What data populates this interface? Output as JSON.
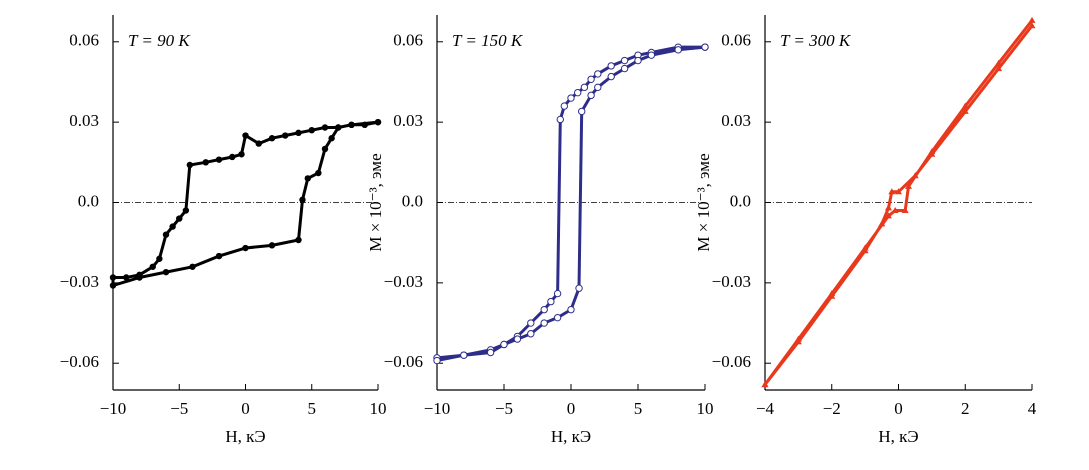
{
  "chart_data": [
    {
      "type": "line",
      "annotation": "T = 90 K",
      "x_label": "H, кЭ",
      "color": "#000000",
      "marker": "filled-circle",
      "x": [
        10,
        9,
        8,
        7,
        6,
        5,
        4,
        3,
        2,
        1,
        0,
        -0.3,
        -1,
        -2,
        -3,
        -4.2,
        -4.5,
        -5,
        -5.5,
        -6,
        -6.5,
        -7,
        -8,
        -9,
        -10,
        -10,
        -8,
        -6,
        -4,
        -2,
        0,
        2,
        4,
        4.3,
        4.7,
        5.5,
        6,
        6.5,
        7,
        8,
        10
      ],
      "values": [
        0.03,
        0.029,
        0.029,
        0.028,
        0.028,
        0.027,
        0.026,
        0.025,
        0.024,
        0.022,
        0.025,
        0.018,
        0.017,
        0.016,
        0.015,
        0.014,
        -0.003,
        -0.006,
        -0.009,
        -0.012,
        -0.021,
        -0.024,
        -0.027,
        -0.028,
        -0.028,
        -0.031,
        -0.028,
        -0.026,
        -0.024,
        -0.02,
        -0.017,
        -0.016,
        -0.014,
        0.001,
        0.009,
        0.011,
        0.02,
        0.024,
        0.028,
        0.029,
        0.03
      ],
      "xlim": [
        -10,
        10
      ],
      "xticks": [
        {
          "value": -10,
          "label": "−10"
        },
        {
          "value": -5,
          "label": "−5"
        },
        0,
        5,
        10
      ],
      "ylim": [
        -0.07,
        0.07
      ],
      "yticks": [
        {
          "value": -0.06,
          "label": "−0.06"
        },
        {
          "value": -0.03,
          "label": "−0.03"
        },
        {
          "value": 0,
          "label": "0.0"
        },
        0.03,
        0.06
      ],
      "zero_line": true
    },
    {
      "type": "line",
      "annotation": "T = 150 K",
      "x_label": "H, кЭ",
      "y_label": "M × 10⁻³, эме",
      "color": "#2e2e8a",
      "marker": "hollow-circle",
      "x": [
        10,
        8,
        6,
        5,
        4,
        3,
        2,
        1.5,
        1,
        0.5,
        0,
        -0.5,
        -0.8,
        -1,
        -1.5,
        -2,
        -3,
        -4,
        -5,
        -6,
        -8,
        -10,
        -10,
        -8,
        -6,
        -5,
        -4,
        -3,
        -2,
        -1,
        0,
        0.6,
        0.8,
        1.5,
        2,
        3,
        4,
        5,
        6,
        8,
        10
      ],
      "values": [
        0.058,
        0.058,
        0.056,
        0.055,
        0.053,
        0.051,
        0.048,
        0.046,
        0.043,
        0.041,
        0.039,
        0.036,
        0.031,
        -0.034,
        -0.037,
        -0.04,
        -0.045,
        -0.05,
        -0.053,
        -0.055,
        -0.057,
        -0.058,
        -0.059,
        -0.057,
        -0.056,
        -0.053,
        -0.051,
        -0.049,
        -0.045,
        -0.043,
        -0.04,
        -0.032,
        0.034,
        0.04,
        0.043,
        0.047,
        0.05,
        0.053,
        0.055,
        0.057,
        0.058
      ],
      "xlim": [
        -10,
        10
      ],
      "xticks": [
        {
          "value": -10,
          "label": "−10"
        },
        {
          "value": -5,
          "label": "−5"
        },
        0,
        5,
        10
      ],
      "ylim": [
        -0.07,
        0.07
      ],
      "yticks": [
        {
          "value": -0.06,
          "label": "−0.06"
        },
        {
          "value": -0.03,
          "label": "−0.03"
        },
        {
          "value": 0,
          "label": "0.0"
        },
        0.03,
        0.06
      ],
      "zero_line": true
    },
    {
      "type": "line",
      "annotation": "T = 300 K",
      "x_label": "H, кЭ",
      "y_label": "M × 10⁻³, эме",
      "color": "#e8391d",
      "marker": "triangle",
      "x": [
        4,
        3,
        2,
        1,
        0.5,
        0,
        -0.2,
        -0.3,
        -0.5,
        -1,
        -2,
        -3,
        -4,
        -4,
        -3,
        -2,
        -1,
        -0.3,
        -0.1,
        0.2,
        0.3,
        1,
        2,
        3,
        4
      ],
      "values": [
        0.066,
        0.05,
        0.034,
        0.018,
        0.01,
        0.004,
        0.004,
        -0.002,
        -0.008,
        -0.018,
        -0.035,
        -0.052,
        -0.068,
        -0.068,
        -0.051,
        -0.034,
        -0.017,
        -0.005,
        -0.003,
        -0.003,
        0.006,
        0.019,
        0.036,
        0.052,
        0.068
      ],
      "xlim": [
        -4,
        4
      ],
      "xticks": [
        {
          "value": -4,
          "label": "−4"
        },
        {
          "value": -2,
          "label": "−2"
        },
        0,
        2,
        4
      ],
      "ylim": [
        -0.07,
        0.07
      ],
      "yticks": [
        {
          "value": -0.06,
          "label": "−0.06"
        },
        {
          "value": -0.03,
          "label": "−0.03"
        },
        {
          "value": 0,
          "label": "0.0"
        },
        0.03,
        0.06
      ],
      "zero_line": true
    }
  ]
}
